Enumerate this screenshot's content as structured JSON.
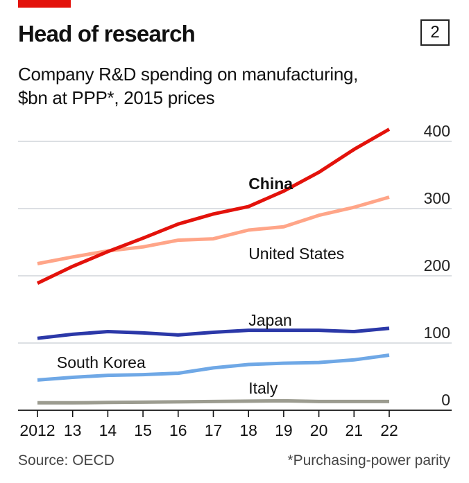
{
  "header": {
    "title": "Head of research",
    "figure_number": "2",
    "subtitle_line1": "Company R&D spending on manufacturing,",
    "subtitle_line2": "$bn at PPP*, 2015 prices",
    "accent_color": "#e3120b"
  },
  "footer": {
    "source": "Source: OECD",
    "footnote": "*Purchasing-power parity"
  },
  "chart_data": {
    "type": "line",
    "x": [
      2012,
      2013,
      2014,
      2015,
      2016,
      2017,
      2018,
      2019,
      2020,
      2021,
      2022
    ],
    "x_tick_labels": [
      "2012",
      "13",
      "14",
      "15",
      "16",
      "17",
      "18",
      "19",
      "20",
      "21",
      "22"
    ],
    "y_ticks": [
      0,
      100,
      200,
      300,
      400
    ],
    "y_tick_labels": [
      "0",
      "100",
      "200",
      "300",
      "400"
    ],
    "ylim": [
      0,
      400
    ],
    "grid": true,
    "y_axis_side": "right",
    "series": [
      {
        "name": "Italy",
        "color": "#9c9c90",
        "label_bold": false,
        "label_x": 2018,
        "label_y": 25,
        "label_anchor": "start",
        "values": [
          11,
          11,
          11.5,
          12,
          12.5,
          13,
          13.5,
          14,
          13,
          13,
          13
        ]
      },
      {
        "name": "South Korea",
        "color": "#6fa8e6",
        "label_bold": false,
        "label_x": 2012.55,
        "label_y": 63,
        "label_anchor": "start",
        "values": [
          45,
          49,
          52,
          53,
          55,
          63,
          68,
          70,
          71,
          75,
          82
        ]
      },
      {
        "name": "Japan",
        "color": "#2b38a8",
        "label_bold": false,
        "label_x": 2018,
        "label_y": 126,
        "label_anchor": "start",
        "values": [
          107,
          113,
          117,
          115,
          112,
          116,
          119,
          119,
          119,
          117,
          122
        ]
      },
      {
        "name": "United States",
        "color": "#ffa588",
        "label_bold": false,
        "label_x": 2018,
        "label_y": 225,
        "label_anchor": "start",
        "values": [
          218,
          228,
          237,
          243,
          253,
          255,
          268,
          273,
          290,
          302,
          317
        ]
      },
      {
        "name": "China",
        "color": "#e3120b",
        "label_bold": true,
        "label_x": 2018,
        "label_y": 329,
        "label_anchor": "start",
        "values": [
          189,
          214,
          236,
          256,
          277,
          292,
          303,
          326,
          354,
          388,
          418
        ]
      }
    ]
  }
}
